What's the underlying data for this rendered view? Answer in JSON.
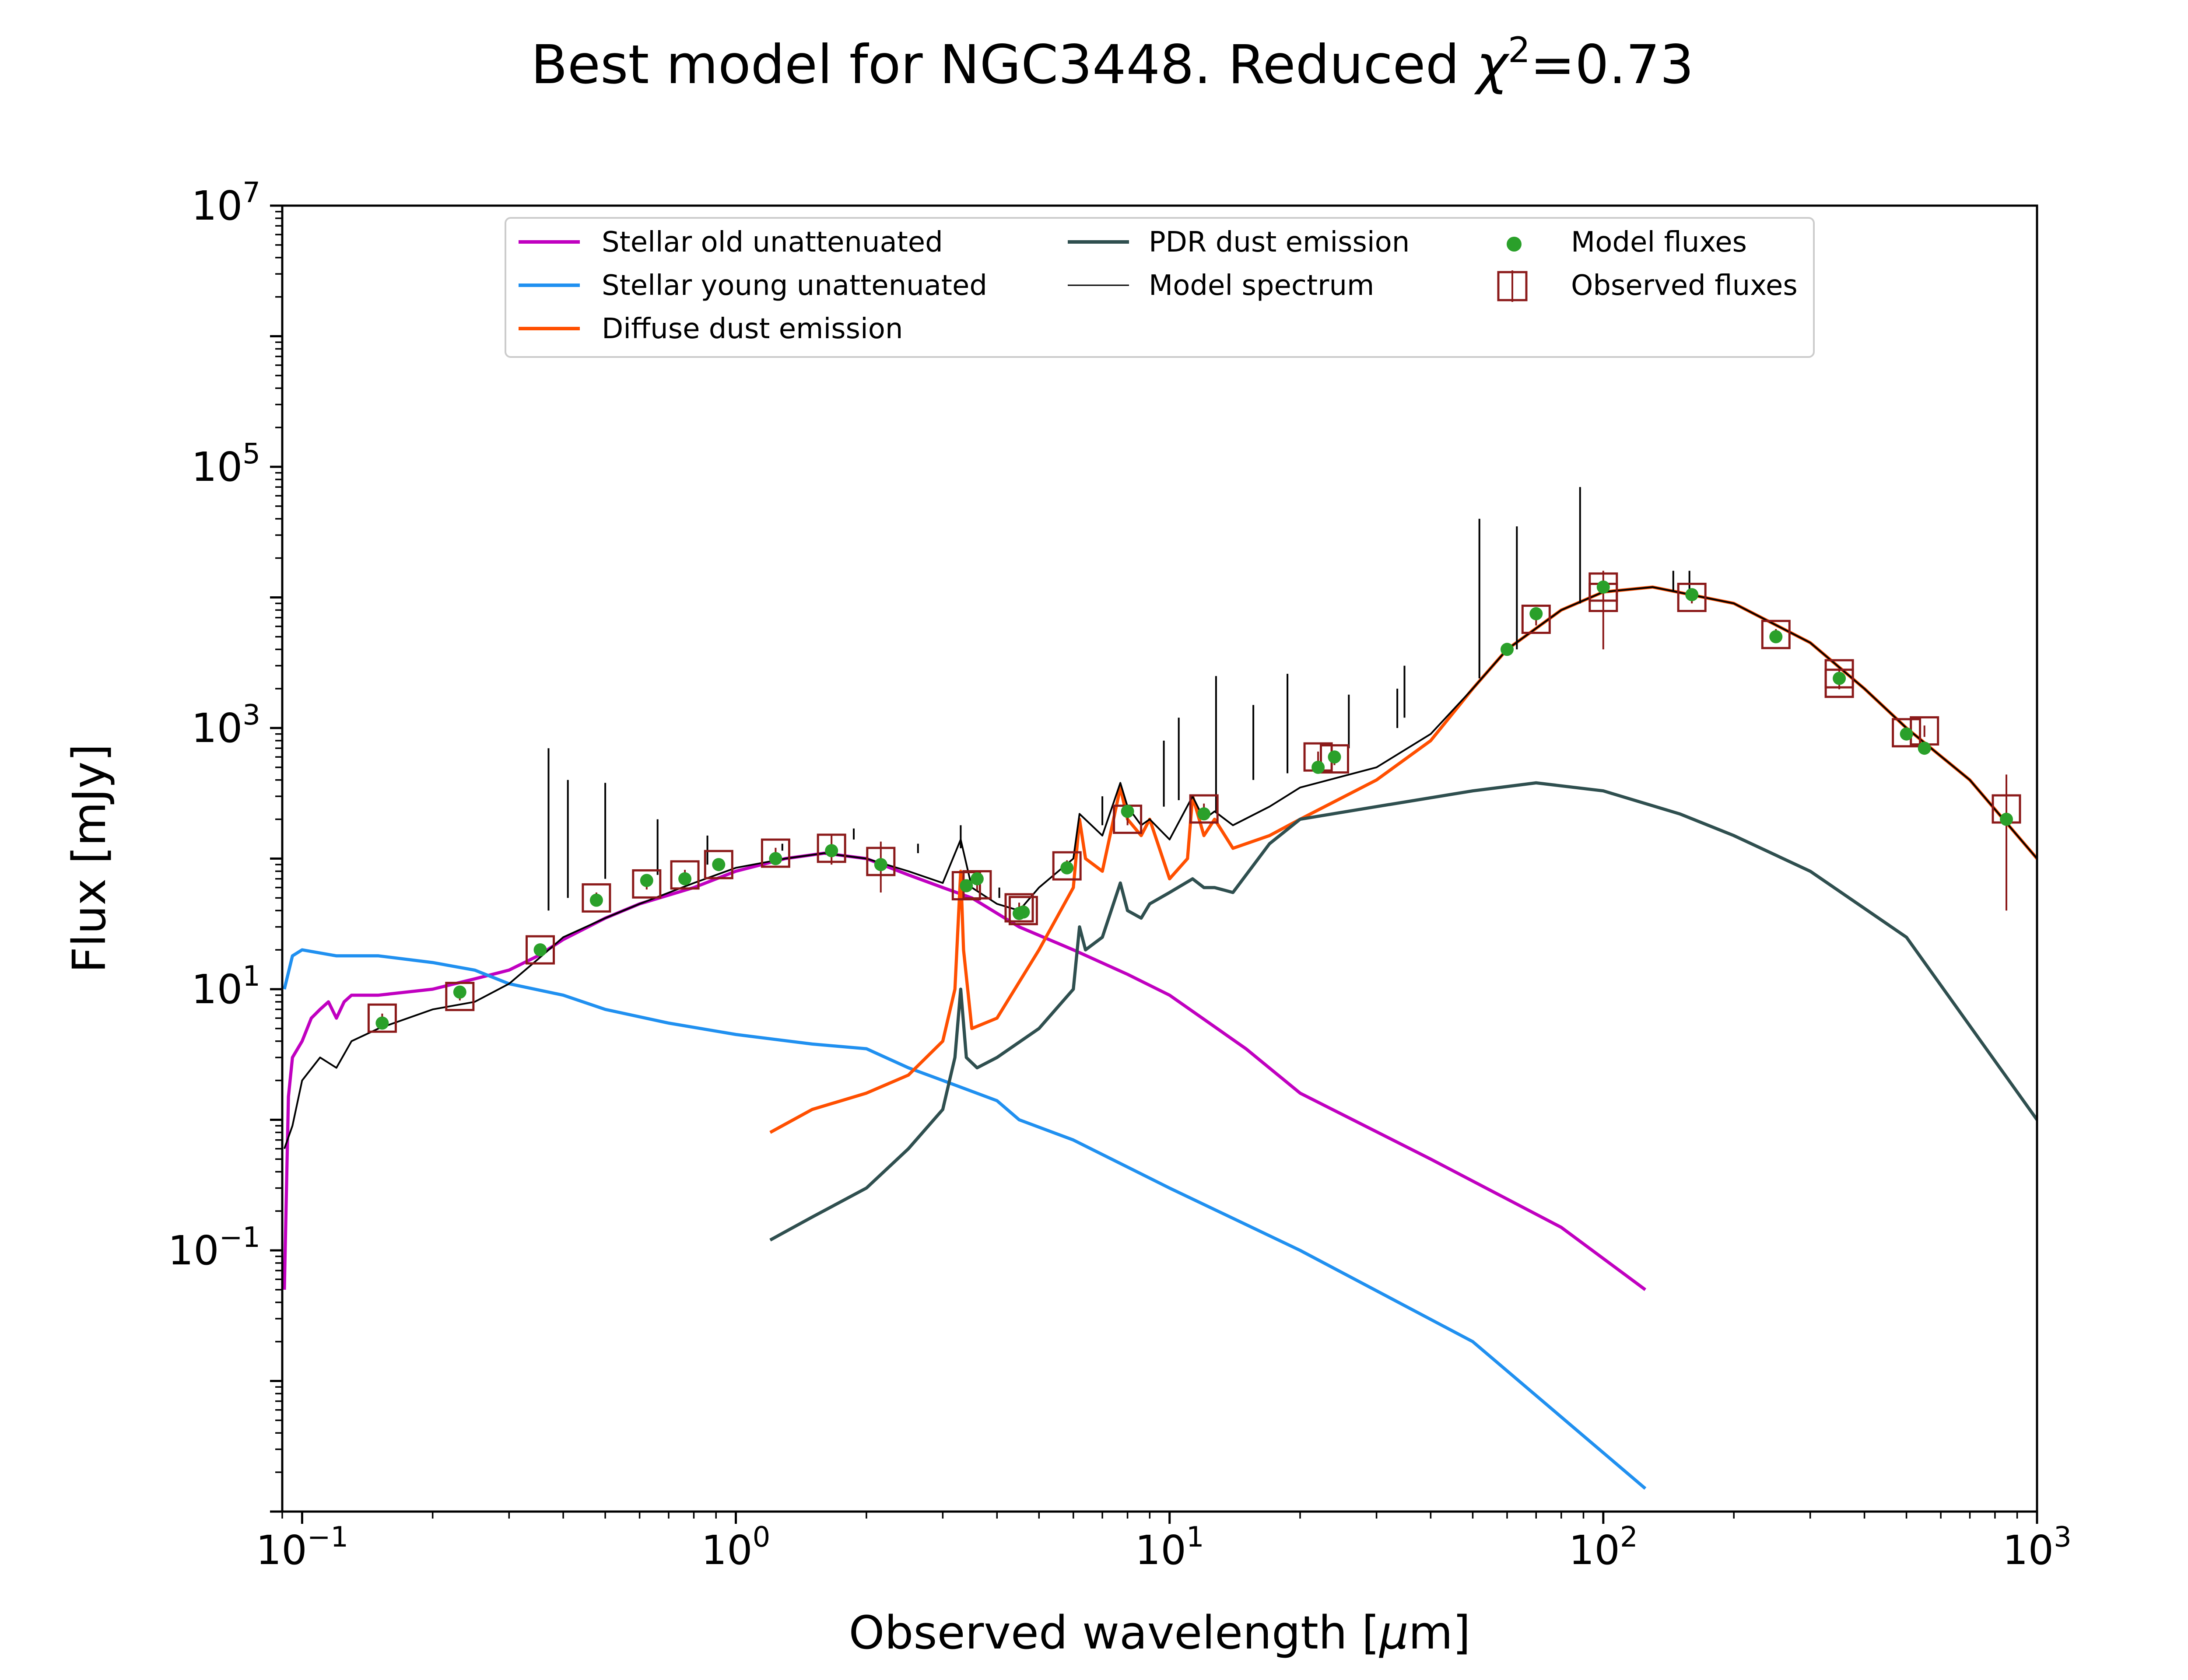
{
  "chart_data": {
    "type": "line",
    "title": "Best model for NGC3448. Reduced χ²=0.73",
    "title_main": "Best model for NGC3448. Reduced ",
    "title_chi": "χ",
    "title_sup": "2",
    "title_end": "=0.73",
    "xlabel_main": "Observed wavelength [",
    "xlabel_mu": "μ",
    "xlabel_end": "m]",
    "ylabel": "Flux [mJy]",
    "xscale": "log",
    "yscale": "log",
    "xlim": [
      0.09,
      1000
    ],
    "ylim": [
      0.001,
      10000000
    ],
    "grid": false,
    "legend_position": "top-center",
    "x_ticks": [
      {
        "value": 0.1,
        "base": "10",
        "exp": "−1"
      },
      {
        "value": 1,
        "base": "10",
        "exp": "0"
      },
      {
        "value": 10,
        "base": "10",
        "exp": "1"
      },
      {
        "value": 100,
        "base": "10",
        "exp": "2"
      },
      {
        "value": 1000,
        "base": "10",
        "exp": "3"
      }
    ],
    "y_ticks": [
      {
        "value": 0.1,
        "base": "10",
        "exp": "−1"
      },
      {
        "value": 10,
        "base": "10",
        "exp": "1"
      },
      {
        "value": 1000,
        "base": "10",
        "exp": "3"
      },
      {
        "value": 100000,
        "base": "10",
        "exp": "5"
      },
      {
        "value": 10000000,
        "base": "10",
        "exp": "7"
      }
    ],
    "series": [
      {
        "name": "Stellar old unattenuated",
        "color": "#c000c0",
        "width": 2.2,
        "points": [
          [
            0.091,
            0.05
          ],
          [
            0.093,
            1.5
          ],
          [
            0.095,
            3
          ],
          [
            0.1,
            4
          ],
          [
            0.105,
            6
          ],
          [
            0.11,
            7
          ],
          [
            0.115,
            8
          ],
          [
            0.12,
            6
          ],
          [
            0.125,
            8
          ],
          [
            0.13,
            9
          ],
          [
            0.15,
            9
          ],
          [
            0.2,
            10
          ],
          [
            0.25,
            12
          ],
          [
            0.3,
            14
          ],
          [
            0.35,
            18
          ],
          [
            0.4,
            24
          ],
          [
            0.5,
            35
          ],
          [
            0.6,
            45
          ],
          [
            0.8,
            60
          ],
          [
            1.0,
            80
          ],
          [
            1.3,
            100
          ],
          [
            1.6,
            110
          ],
          [
            2.0,
            100
          ],
          [
            2.5,
            75
          ],
          [
            3.0,
            60
          ],
          [
            3.5,
            50
          ],
          [
            4.5,
            30
          ],
          [
            6,
            20
          ],
          [
            8,
            13
          ],
          [
            10,
            9
          ],
          [
            15,
            3.5
          ],
          [
            20,
            1.6
          ],
          [
            40,
            0.5
          ],
          [
            80,
            0.15
          ],
          [
            125,
            0.05
          ]
        ]
      },
      {
        "name": "Stellar young unattenuated",
        "color": "#2090f0",
        "width": 2.2,
        "points": [
          [
            0.091,
            10
          ],
          [
            0.095,
            18
          ],
          [
            0.1,
            20
          ],
          [
            0.12,
            18
          ],
          [
            0.15,
            18
          ],
          [
            0.2,
            16
          ],
          [
            0.25,
            14
          ],
          [
            0.3,
            11
          ],
          [
            0.4,
            9
          ],
          [
            0.5,
            7
          ],
          [
            0.7,
            5.5
          ],
          [
            1.0,
            4.5
          ],
          [
            1.5,
            3.8
          ],
          [
            2.0,
            3.5
          ],
          [
            2.5,
            2.5
          ],
          [
            3,
            2.0
          ],
          [
            4,
            1.4
          ],
          [
            4.5,
            1.0
          ],
          [
            6,
            0.7
          ],
          [
            10,
            0.3
          ],
          [
            20,
            0.1
          ],
          [
            50,
            0.02
          ],
          [
            125,
            0.0015
          ]
        ]
      },
      {
        "name": "Diffuse dust emission",
        "color": "#ff4f00",
        "width": 2.2,
        "points": [
          [
            1.2,
            0.8
          ],
          [
            1.5,
            1.2
          ],
          [
            2.0,
            1.6
          ],
          [
            2.5,
            2.2
          ],
          [
            3.0,
            4
          ],
          [
            3.2,
            10
          ],
          [
            3.3,
            80
          ],
          [
            3.35,
            20
          ],
          [
            3.5,
            5
          ],
          [
            4,
            6
          ],
          [
            5,
            20
          ],
          [
            6.0,
            60
          ],
          [
            6.2,
            200
          ],
          [
            6.4,
            100
          ],
          [
            7.0,
            80
          ],
          [
            7.7,
            350
          ],
          [
            8.0,
            200
          ],
          [
            8.6,
            150
          ],
          [
            9,
            200
          ],
          [
            10,
            70
          ],
          [
            11,
            100
          ],
          [
            11.3,
            300
          ],
          [
            12,
            150
          ],
          [
            12.7,
            200
          ],
          [
            14,
            120
          ],
          [
            17,
            150
          ],
          [
            20,
            200
          ],
          [
            30,
            400
          ],
          [
            40,
            800
          ],
          [
            50,
            2000
          ],
          [
            60,
            4000
          ],
          [
            80,
            8000
          ],
          [
            100,
            11000
          ],
          [
            130,
            12000
          ],
          [
            200,
            9000
          ],
          [
            300,
            4500
          ],
          [
            400,
            2000
          ],
          [
            500,
            1000
          ],
          [
            700,
            400
          ],
          [
            1000,
            100
          ]
        ]
      },
      {
        "name": "PDR dust emission",
        "color": "#2f4f4f",
        "width": 2.2,
        "points": [
          [
            1.2,
            0.12
          ],
          [
            1.5,
            0.18
          ],
          [
            2.0,
            0.3
          ],
          [
            2.5,
            0.6
          ],
          [
            3.0,
            1.2
          ],
          [
            3.2,
            3
          ],
          [
            3.3,
            10
          ],
          [
            3.4,
            3
          ],
          [
            3.6,
            2.5
          ],
          [
            4,
            3
          ],
          [
            5,
            5
          ],
          [
            6.0,
            10
          ],
          [
            6.2,
            30
          ],
          [
            6.4,
            20
          ],
          [
            7.0,
            25
          ],
          [
            7.7,
            65
          ],
          [
            8.0,
            40
          ],
          [
            8.6,
            35
          ],
          [
            9,
            45
          ],
          [
            10,
            55
          ],
          [
            11.3,
            70
          ],
          [
            12,
            60
          ],
          [
            12.7,
            60
          ],
          [
            14,
            55
          ],
          [
            17,
            130
          ],
          [
            20,
            200
          ],
          [
            30,
            250
          ],
          [
            50,
            330
          ],
          [
            70,
            380
          ],
          [
            100,
            330
          ],
          [
            150,
            220
          ],
          [
            200,
            150
          ],
          [
            300,
            80
          ],
          [
            500,
            25
          ],
          [
            1000,
            1
          ]
        ]
      },
      {
        "name": "Model spectrum",
        "color": "#000000",
        "width": 1.2,
        "points": [
          [
            0.091,
            0.6
          ],
          [
            0.095,
            0.9
          ],
          [
            0.1,
            2
          ],
          [
            0.11,
            3
          ],
          [
            0.12,
            2.5
          ],
          [
            0.13,
            4
          ],
          [
            0.15,
            5
          ],
          [
            0.2,
            7
          ],
          [
            0.25,
            8
          ],
          [
            0.3,
            11
          ],
          [
            0.35,
            17
          ],
          [
            0.4,
            25
          ],
          [
            0.5,
            35
          ],
          [
            0.6,
            45
          ],
          [
            0.8,
            65
          ],
          [
            1.0,
            85
          ],
          [
            1.3,
            100
          ],
          [
            1.6,
            110
          ],
          [
            2.0,
            100
          ],
          [
            2.5,
            80
          ],
          [
            3.0,
            65
          ],
          [
            3.3,
            140
          ],
          [
            3.5,
            60
          ],
          [
            4,
            45
          ],
          [
            4.5,
            40
          ],
          [
            5,
            60
          ],
          [
            6,
            100
          ],
          [
            6.2,
            220
          ],
          [
            7.0,
            150
          ],
          [
            7.7,
            380
          ],
          [
            8.0,
            250
          ],
          [
            8.6,
            180
          ],
          [
            9,
            200
          ],
          [
            10,
            140
          ],
          [
            11.3,
            300
          ],
          [
            12,
            200
          ],
          [
            12.7,
            230
          ],
          [
            14,
            180
          ],
          [
            17,
            250
          ],
          [
            20,
            350
          ],
          [
            30,
            500
          ],
          [
            40,
            900
          ],
          [
            50,
            2000
          ],
          [
            60,
            4000
          ],
          [
            80,
            8000
          ],
          [
            100,
            11000
          ],
          [
            130,
            12000
          ],
          [
            200,
            9000
          ],
          [
            300,
            4500
          ],
          [
            400,
            2000
          ],
          [
            500,
            1000
          ],
          [
            700,
            400
          ],
          [
            1000,
            100
          ]
        ],
        "lines": [
          [
            0.37,
            40,
            700
          ],
          [
            0.41,
            50,
            400
          ],
          [
            0.5,
            70,
            380
          ],
          [
            0.66,
            75,
            200
          ],
          [
            0.86,
            90,
            150
          ],
          [
            1.28,
            115,
            130
          ],
          [
            1.87,
            140,
            170
          ],
          [
            2.63,
            110,
            130
          ],
          [
            3.3,
            120,
            180
          ],
          [
            4.05,
            50,
            60
          ],
          [
            7.0,
            180,
            300
          ],
          [
            9.7,
            250,
            800
          ],
          [
            10.5,
            280,
            1200
          ],
          [
            12.8,
            230,
            2500
          ],
          [
            15.6,
            400,
            1500
          ],
          [
            18.7,
            450,
            2600
          ],
          [
            25.9,
            700,
            1800
          ],
          [
            33.5,
            1000,
            2000
          ],
          [
            34.8,
            1200,
            3000
          ],
          [
            51.8,
            2400,
            40000
          ],
          [
            63.2,
            4000,
            35000
          ],
          [
            88.4,
            9000,
            70000
          ],
          [
            145,
            11000,
            16000
          ],
          [
            158,
            10500,
            16000
          ]
        ]
      }
    ],
    "model_fluxes": {
      "name": "Model fluxes",
      "color": "#2aa02a",
      "points": [
        [
          0.153,
          5.5
        ],
        [
          0.231,
          9.5
        ],
        [
          0.354,
          20
        ],
        [
          0.477,
          48
        ],
        [
          0.623,
          68
        ],
        [
          0.763,
          70
        ],
        [
          0.913,
          90
        ],
        [
          1.235,
          100
        ],
        [
          1.662,
          115
        ],
        [
          2.159,
          90
        ],
        [
          3.4,
          62
        ],
        [
          3.6,
          70
        ],
        [
          4.5,
          38
        ],
        [
          4.6,
          39
        ],
        [
          5.8,
          85
        ],
        [
          8.0,
          230
        ],
        [
          12,
          220
        ],
        [
          22,
          500
        ],
        [
          24,
          600
        ],
        [
          60,
          4000
        ],
        [
          70,
          7500
        ],
        [
          100,
          12000
        ],
        [
          160,
          10500
        ],
        [
          250,
          5000
        ],
        [
          350,
          2400
        ],
        [
          500,
          900
        ],
        [
          550,
          700
        ],
        [
          850,
          200
        ]
      ]
    },
    "observed_fluxes": {
      "name": "Observed fluxes",
      "color": "#8b1a1a",
      "points": [
        [
          0.153,
          6,
          0.5
        ],
        [
          0.231,
          8.8,
          0.6
        ],
        [
          0.354,
          20,
          2
        ],
        [
          0.477,
          50,
          5
        ],
        [
          0.623,
          64,
          6
        ],
        [
          0.763,
          75,
          7
        ],
        [
          0.913,
          90,
          9
        ],
        [
          1.235,
          110,
          11
        ],
        [
          1.662,
          120,
          30
        ],
        [
          2.159,
          95,
          40
        ],
        [
          3.4,
          62,
          6
        ],
        [
          3.6,
          63,
          6
        ],
        [
          4.5,
          42,
          4
        ],
        [
          4.6,
          40,
          4
        ],
        [
          5.8,
          88,
          9
        ],
        [
          8.0,
          200,
          20
        ],
        [
          12,
          240,
          24
        ],
        [
          22,
          600,
          60
        ],
        [
          24,
          580,
          60
        ],
        [
          70,
          6800,
          700
        ],
        [
          100,
          10000,
          6000
        ],
        [
          100,
          12000,
          1200
        ],
        [
          160,
          10000,
          1000
        ],
        [
          250,
          5200,
          520
        ],
        [
          350,
          2600,
          260
        ],
        [
          350,
          2200,
          220
        ],
        [
          500,
          920,
          90
        ],
        [
          550,
          950,
          95
        ],
        [
          850,
          240,
          200
        ]
      ]
    }
  }
}
